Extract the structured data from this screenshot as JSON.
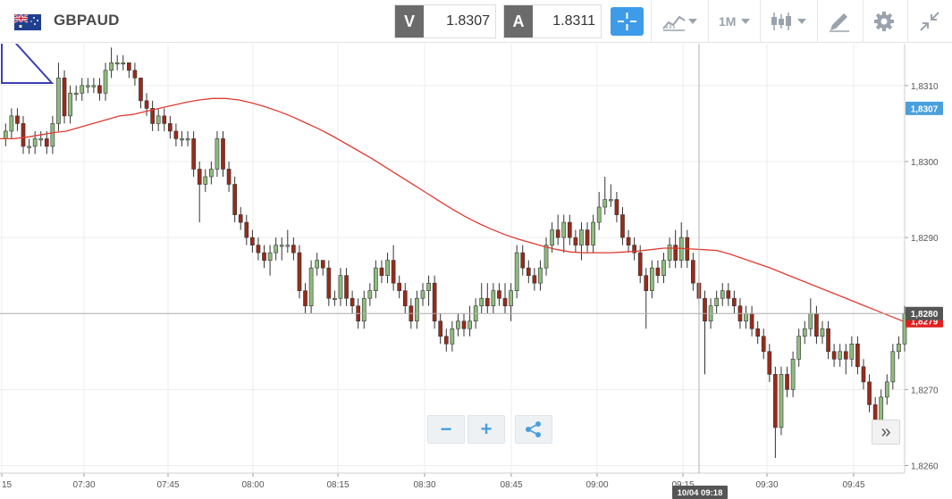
{
  "toolbar": {
    "symbol": "GBPAUD",
    "bid_label": "V",
    "bid_value": "1.8307",
    "ask_label": "A",
    "ask_value": "1.8311",
    "timeframe": "1M",
    "icons": [
      "gb-flag-icon",
      "au-flag-icon",
      "crosshair-icon",
      "chart-type-icon",
      "candlestick-icon",
      "drawing-tool-icon",
      "settings-gear-icon",
      "collapse-arrows-icon"
    ]
  },
  "controls": {
    "zoom_out": "−",
    "zoom_in": "+",
    "share_icon": "share-icon",
    "scroll_end": "»"
  },
  "colors": {
    "bull": "#8fbc7f",
    "bear": "#9a2a1a",
    "ma_line": "#e03a30",
    "last_price_badge": "#4a9fdc",
    "cursor_badge": "#555555",
    "ma_badge": "#e02020"
  },
  "chart_data": {
    "type": "candlestick",
    "y_ticks": [
      "1,8260",
      "1,8270",
      "1,8280",
      "1,8290",
      "1,8300",
      "1,8310"
    ],
    "x_ticks": [
      "15",
      "07:30",
      "07:45",
      "08:00",
      "08:15",
      "08:30",
      "08:45",
      "09:00",
      "09:15",
      "09:30",
      "09:45"
    ],
    "ylim": [
      1.8259,
      1.83155
    ],
    "badges": {
      "last_price": "1,8307",
      "cursor_price": "1,8280",
      "ma_value": "1,8279"
    },
    "crosshair_time": "10/04 09:18",
    "candles": [
      [
        1.8303,
        1.8304,
        1.8302,
        1.8305
      ],
      [
        1.8304,
        1.8306,
        1.8303,
        1.8307
      ],
      [
        1.8306,
        1.8305,
        1.8304,
        1.8307
      ],
      [
        1.8305,
        1.8302,
        1.8301,
        1.8306
      ],
      [
        1.8302,
        1.8302,
        1.8301,
        1.8303
      ],
      [
        1.8302,
        1.8303,
        1.8301,
        1.8304
      ],
      [
        1.8303,
        1.8303,
        1.8302,
        1.8304
      ],
      [
        1.8303,
        1.8302,
        1.8301,
        1.8304
      ],
      [
        1.8302,
        1.8305,
        1.8301,
        1.8306
      ],
      [
        1.8305,
        1.8311,
        1.8304,
        1.8313
      ],
      [
        1.8311,
        1.8306,
        1.8305,
        1.8312
      ],
      [
        1.8306,
        1.8309,
        1.8305,
        1.831
      ],
      [
        1.8309,
        1.8309,
        1.8308,
        1.831
      ],
      [
        1.8309,
        1.831,
        1.8308,
        1.8311
      ],
      [
        1.831,
        1.831,
        1.8309,
        1.8311
      ],
      [
        1.831,
        1.831,
        1.8309,
        1.8311
      ],
      [
        1.831,
        1.8309,
        1.8308,
        1.8311
      ],
      [
        1.8309,
        1.8312,
        1.8308,
        1.8313
      ],
      [
        1.8312,
        1.8313,
        1.8311,
        1.8315
      ],
      [
        1.8313,
        1.8313,
        1.8312,
        1.8314
      ],
      [
        1.8313,
        1.8313,
        1.8312,
        1.8314
      ],
      [
        1.8313,
        1.8312,
        1.8311,
        1.8313
      ],
      [
        1.8312,
        1.8311,
        1.831,
        1.8313
      ],
      [
        1.8311,
        1.8308,
        1.8307,
        1.8311
      ],
      [
        1.8308,
        1.8307,
        1.8306,
        1.8309
      ],
      [
        1.8307,
        1.8305,
        1.8304,
        1.8308
      ],
      [
        1.8305,
        1.8306,
        1.8304,
        1.8307
      ],
      [
        1.8306,
        1.8305,
        1.8304,
        1.8307
      ],
      [
        1.8305,
        1.8304,
        1.8303,
        1.8306
      ],
      [
        1.8304,
        1.8303,
        1.8302,
        1.8305
      ],
      [
        1.8303,
        1.8303,
        1.8302,
        1.8304
      ],
      [
        1.8303,
        1.8303,
        1.8302,
        1.8304
      ],
      [
        1.8303,
        1.8299,
        1.8298,
        1.8304
      ],
      [
        1.8299,
        1.8297,
        1.8292,
        1.83
      ],
      [
        1.8297,
        1.8298,
        1.8296,
        1.8299
      ],
      [
        1.8298,
        1.8299,
        1.8297,
        1.83
      ],
      [
        1.8299,
        1.8303,
        1.8298,
        1.8304
      ],
      [
        1.8303,
        1.8299,
        1.8298,
        1.8304
      ],
      [
        1.8299,
        1.8297,
        1.8296,
        1.83
      ],
      [
        1.8297,
        1.8293,
        1.8292,
        1.8298
      ],
      [
        1.8293,
        1.8292,
        1.8291,
        1.8294
      ],
      [
        1.8292,
        1.829,
        1.8289,
        1.8293
      ],
      [
        1.829,
        1.8289,
        1.8288,
        1.8291
      ],
      [
        1.8289,
        1.8288,
        1.8287,
        1.829
      ],
      [
        1.8288,
        1.8287,
        1.8286,
        1.8289
      ],
      [
        1.8287,
        1.8288,
        1.8285,
        1.8289
      ],
      [
        1.8288,
        1.8289,
        1.8287,
        1.829
      ],
      [
        1.8289,
        1.8289,
        1.8287,
        1.829
      ],
      [
        1.8289,
        1.8289,
        1.8288,
        1.8291
      ],
      [
        1.8289,
        1.8288,
        1.8287,
        1.829
      ],
      [
        1.8288,
        1.8283,
        1.8282,
        1.8289
      ],
      [
        1.8283,
        1.8281,
        1.828,
        1.8284
      ],
      [
        1.8281,
        1.8286,
        1.828,
        1.8287
      ],
      [
        1.8286,
        1.8287,
        1.8285,
        1.8288
      ],
      [
        1.8287,
        1.8286,
        1.8285,
        1.8287
      ],
      [
        1.8286,
        1.8282,
        1.8281,
        1.8287
      ],
      [
        1.8282,
        1.8282,
        1.8281,
        1.8283
      ],
      [
        1.8282,
        1.8285,
        1.8281,
        1.8286
      ],
      [
        1.8285,
        1.8282,
        1.8281,
        1.8286
      ],
      [
        1.8282,
        1.8281,
        1.828,
        1.8283
      ],
      [
        1.8281,
        1.8279,
        1.8278,
        1.8282
      ],
      [
        1.8279,
        1.8282,
        1.8278,
        1.8283
      ],
      [
        1.8282,
        1.8283,
        1.8281,
        1.8284
      ],
      [
        1.8283,
        1.8286,
        1.8282,
        1.8287
      ],
      [
        1.8286,
        1.8285,
        1.8284,
        1.8287
      ],
      [
        1.8285,
        1.8287,
        1.8284,
        1.8288
      ],
      [
        1.8287,
        1.8284,
        1.8283,
        1.8289
      ],
      [
        1.8284,
        1.8283,
        1.8282,
        1.8285
      ],
      [
        1.8283,
        1.8281,
        1.828,
        1.8284
      ],
      [
        1.8281,
        1.8279,
        1.8278,
        1.8282
      ],
      [
        1.8279,
        1.8282,
        1.8278,
        1.8283
      ],
      [
        1.8282,
        1.8283,
        1.8281,
        1.8284
      ],
      [
        1.8283,
        1.8284,
        1.8281,
        1.8285
      ],
      [
        1.8284,
        1.8279,
        1.8278,
        1.8285
      ],
      [
        1.8279,
        1.8277,
        1.8276,
        1.828
      ],
      [
        1.8277,
        1.8276,
        1.8275,
        1.8278
      ],
      [
        1.8276,
        1.8278,
        1.8275,
        1.8279
      ],
      [
        1.8278,
        1.8279,
        1.8277,
        1.828
      ],
      [
        1.8279,
        1.8278,
        1.8277,
        1.828
      ],
      [
        1.8278,
        1.8279,
        1.8277,
        1.8281
      ],
      [
        1.8279,
        1.8281,
        1.8278,
        1.8282
      ],
      [
        1.8281,
        1.8282,
        1.828,
        1.8284
      ],
      [
        1.8282,
        1.8281,
        1.828,
        1.8284
      ],
      [
        1.8281,
        1.8283,
        1.828,
        1.8284
      ],
      [
        1.8283,
        1.8282,
        1.8281,
        1.8284
      ],
      [
        1.8282,
        1.8281,
        1.828,
        1.8284
      ],
      [
        1.8281,
        1.8283,
        1.8279,
        1.8284
      ],
      [
        1.8283,
        1.8288,
        1.8282,
        1.8289
      ],
      [
        1.8288,
        1.8286,
        1.8285,
        1.8289
      ],
      [
        1.8286,
        1.8285,
        1.8284,
        1.8287
      ],
      [
        1.8285,
        1.8284,
        1.8283,
        1.8286
      ],
      [
        1.8284,
        1.8286,
        1.8283,
        1.8287
      ],
      [
        1.8286,
        1.8289,
        1.8285,
        1.829
      ],
      [
        1.8289,
        1.8291,
        1.8288,
        1.8292
      ],
      [
        1.8291,
        1.829,
        1.8289,
        1.8293
      ],
      [
        1.829,
        1.8292,
        1.8288,
        1.8293
      ],
      [
        1.8292,
        1.829,
        1.8289,
        1.8293
      ],
      [
        1.829,
        1.8289,
        1.8288,
        1.8291
      ],
      [
        1.8289,
        1.8291,
        1.8287,
        1.8292
      ],
      [
        1.8291,
        1.8289,
        1.8288,
        1.8292
      ],
      [
        1.8289,
        1.8292,
        1.8288,
        1.8293
      ],
      [
        1.8292,
        1.8294,
        1.8291,
        1.8296
      ],
      [
        1.8294,
        1.8295,
        1.8293,
        1.8298
      ],
      [
        1.8295,
        1.8295,
        1.8294,
        1.8297
      ],
      [
        1.8295,
        1.8293,
        1.8292,
        1.8296
      ],
      [
        1.8293,
        1.829,
        1.8289,
        1.8294
      ],
      [
        1.829,
        1.8289,
        1.8288,
        1.8291
      ],
      [
        1.8289,
        1.8288,
        1.8287,
        1.829
      ],
      [
        1.8288,
        1.8285,
        1.8284,
        1.8289
      ],
      [
        1.8285,
        1.8283,
        1.8278,
        1.8286
      ],
      [
        1.8283,
        1.8286,
        1.8282,
        1.8287
      ],
      [
        1.8286,
        1.8285,
        1.8284,
        1.8287
      ],
      [
        1.8285,
        1.8287,
        1.8284,
        1.8288
      ],
      [
        1.8287,
        1.8289,
        1.8286,
        1.829
      ],
      [
        1.8289,
        1.8287,
        1.8286,
        1.8291
      ],
      [
        1.8287,
        1.829,
        1.8286,
        1.8292
      ],
      [
        1.829,
        1.8287,
        1.8286,
        1.8291
      ],
      [
        1.8287,
        1.8284,
        1.8283,
        1.8288
      ],
      [
        1.8284,
        1.8282,
        1.8281,
        1.8285
      ],
      [
        1.8282,
        1.8279,
        1.8272,
        1.8283
      ],
      [
        1.8279,
        1.8281,
        1.8278,
        1.8282
      ],
      [
        1.8281,
        1.8282,
        1.828,
        1.8283
      ],
      [
        1.8282,
        1.8283,
        1.8281,
        1.8284
      ],
      [
        1.8283,
        1.8282,
        1.8281,
        1.8284
      ],
      [
        1.8282,
        1.8281,
        1.828,
        1.8283
      ],
      [
        1.8281,
        1.8279,
        1.8278,
        1.8282
      ],
      [
        1.8279,
        1.828,
        1.8278,
        1.8281
      ],
      [
        1.828,
        1.8278,
        1.8277,
        1.8281
      ],
      [
        1.8278,
        1.8277,
        1.8276,
        1.8279
      ],
      [
        1.8277,
        1.8275,
        1.8274,
        1.8278
      ],
      [
        1.8275,
        1.8272,
        1.8271,
        1.8276
      ],
      [
        1.8272,
        1.8265,
        1.8261,
        1.8273
      ],
      [
        1.8265,
        1.8272,
        1.8264,
        1.8273
      ],
      [
        1.8272,
        1.827,
        1.8269,
        1.8273
      ],
      [
        1.827,
        1.8274,
        1.8269,
        1.8275
      ],
      [
        1.8274,
        1.8277,
        1.8273,
        1.8278
      ],
      [
        1.8277,
        1.8278,
        1.8276,
        1.8279
      ],
      [
        1.8278,
        1.828,
        1.8277,
        1.8282
      ],
      [
        1.828,
        1.8277,
        1.8276,
        1.8281
      ],
      [
        1.8277,
        1.8278,
        1.8276,
        1.8279
      ],
      [
        1.8278,
        1.8275,
        1.8274,
        1.8279
      ],
      [
        1.8275,
        1.8274,
        1.8273,
        1.8276
      ],
      [
        1.8274,
        1.8275,
        1.8273,
        1.8276
      ],
      [
        1.8275,
        1.8274,
        1.8272,
        1.8276
      ],
      [
        1.8274,
        1.8276,
        1.8273,
        1.8277
      ],
      [
        1.8276,
        1.8273,
        1.8272,
        1.8277
      ],
      [
        1.8273,
        1.8271,
        1.827,
        1.8274
      ],
      [
        1.8271,
        1.8268,
        1.8267,
        1.8272
      ],
      [
        1.8268,
        1.8266,
        1.8265,
        1.8269
      ],
      [
        1.8266,
        1.8269,
        1.8264,
        1.827
      ],
      [
        1.8269,
        1.8271,
        1.8268,
        1.8272
      ],
      [
        1.8271,
        1.8275,
        1.827,
        1.8276
      ],
      [
        1.8275,
        1.8276,
        1.8274,
        1.8277
      ],
      [
        1.8276,
        1.828,
        1.8275,
        1.8281
      ]
    ],
    "ma": [
      1.8303,
      1.8303,
      1.83032,
      1.83035,
      1.83038,
      1.8304,
      1.83045,
      1.8305,
      1.83055,
      1.8306,
      1.83062,
      1.83066,
      1.8307,
      1.83074,
      1.83078,
      1.83081,
      1.83083,
      1.83083,
      1.83081,
      1.83077,
      1.83072,
      1.83066,
      1.83059,
      1.83051,
      1.83043,
      1.83034,
      1.83024,
      1.83014,
      1.83004,
      1.82993,
      1.82982,
      1.82971,
      1.8296,
      1.82949,
      1.82938,
      1.82928,
      1.82919,
      1.82911,
      1.82904,
      1.82898,
      1.82893,
      1.82888,
      1.82884,
      1.82881,
      1.8288,
      1.8288,
      1.8288,
      1.82881,
      1.82882,
      1.82884,
      1.82886,
      1.82886,
      1.82885,
      1.82884,
      1.82883,
      1.82878,
      1.82872,
      1.82866,
      1.8286,
      1.82853,
      1.82846,
      1.82839,
      1.82832,
      1.82825,
      1.82818,
      1.82811,
      1.82804,
      1.82797,
      1.8279
    ]
  }
}
